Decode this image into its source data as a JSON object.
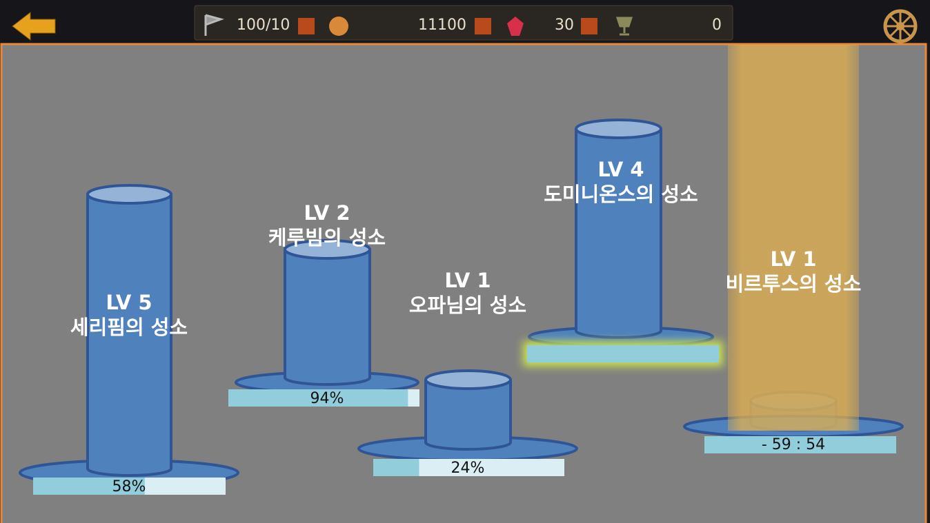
{
  "header": {
    "stamina": "100/10",
    "gold": "11100",
    "gems": "30",
    "trophies": "0"
  },
  "castles": [
    {
      "level": "LV 5",
      "name": "세리핌의 성소",
      "progress": 58,
      "progress_label": "58%"
    },
    {
      "level": "LV 2",
      "name": "케루빔의 성소",
      "progress": 94,
      "progress_label": "94%"
    },
    {
      "level": "LV 1",
      "name": "오파님의 성소",
      "progress": 24,
      "progress_label": "24%"
    },
    {
      "level": "LV 4",
      "name": "도미니온스의 성소"
    },
    {
      "level": "LV 1",
      "name": "비르투스의 성소",
      "timer": "- 59 : 54"
    }
  ]
}
